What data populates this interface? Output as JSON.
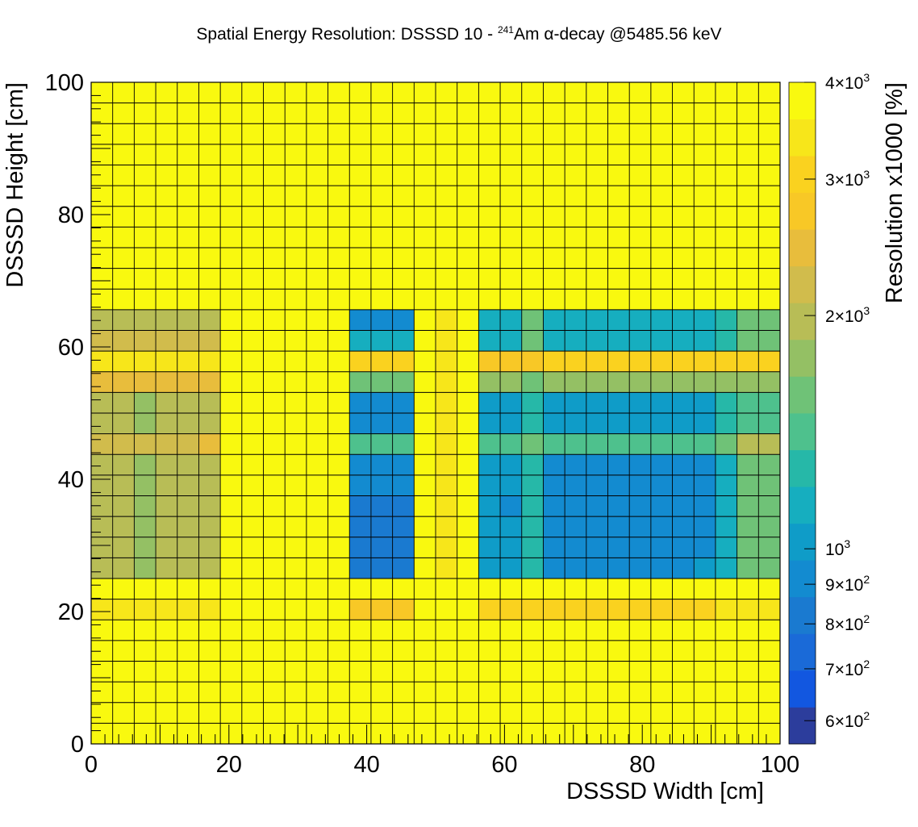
{
  "chart_data": {
    "type": "heatmap",
    "title_parts": {
      "pre": "Spatial Energy Resolution: DSSSD 10 - ",
      "isotope_mass": "241",
      "element": "Am ",
      "alpha": "α",
      "post": "-decay @5485.56 keV"
    },
    "xlabel": "DSSSD Width [cm]",
    "ylabel": "DSSSD Height [cm]",
    "zlabel": "Resolution x1000 [%]",
    "xlim": [
      0,
      100
    ],
    "ylim": [
      0,
      100
    ],
    "x_ticks": [
      "0",
      "20",
      "40",
      "60",
      "80",
      "100"
    ],
    "y_ticks": [
      "0",
      "20",
      "40",
      "60",
      "80",
      "100"
    ],
    "z_scale": "log",
    "z_range": [
      560,
      4000
    ],
    "z_ticks": [
      {
        "value": 4000,
        "mant": "4",
        "exp": "3"
      },
      {
        "value": 3000,
        "mant": "3",
        "exp": "3"
      },
      {
        "value": 2000,
        "mant": "2",
        "exp": "3"
      },
      {
        "value": 1000,
        "mant": "",
        "exp": "3"
      },
      {
        "value": 900,
        "mant": "9",
        "exp": "2"
      },
      {
        "value": 800,
        "mant": "8",
        "exp": "2"
      },
      {
        "value": 700,
        "mant": "7",
        "exp": "2"
      },
      {
        "value": 600,
        "mant": "6",
        "exp": "2"
      }
    ],
    "nx": 32,
    "ny": 32,
    "palette": [
      "#2c3d9c",
      "#1257e0",
      "#1a6ad8",
      "#1a7ad0",
      "#138bd0",
      "#0f9cc8",
      "#16aebf",
      "#26b8a8",
      "#4ec18d",
      "#6fc277",
      "#94c064",
      "#b8bd56",
      "#d1bc4c",
      "#e8bd3c",
      "#f8c826",
      "#fad21f",
      "#f7e61a",
      "#f9f90f"
    ],
    "row_values": {
      "4000": [
        4000,
        4000,
        4000,
        4000,
        4000,
        4000,
        4000,
        4000,
        4000,
        4000,
        4000,
        4000,
        4000,
        4000,
        4000,
        4000,
        4000,
        4000,
        4000,
        4000,
        4000,
        4000,
        4000,
        4000,
        4000,
        4000,
        4000,
        4000,
        4000,
        4000,
        4000,
        4000
      ],
      "25_22": [
        3300,
        3300,
        3300,
        3300,
        3300,
        3300,
        4000,
        4000,
        4000,
        4000,
        4000,
        4000,
        2700,
        2700,
        2700,
        4000,
        4000,
        4000,
        3000,
        3000,
        3000,
        3000,
        3000,
        3000,
        3000,
        3000,
        3000,
        3000,
        3000,
        3300,
        3300,
        3300
      ],
      "68_65": [
        2000,
        2000,
        1900,
        2000,
        2000,
        2000,
        4000,
        4000,
        4000,
        4000,
        4000,
        4000,
        950,
        950,
        950,
        4000,
        3300,
        4000,
        1150,
        1150,
        1500,
        1150,
        1150,
        1150,
        1150,
        1150,
        1150,
        1150,
        1150,
        1300,
        1500,
        1500
      ],
      "65_62": [
        2300,
        2300,
        2300,
        2300,
        2300,
        2300,
        4000,
        4000,
        4000,
        4000,
        4000,
        4000,
        1150,
        1150,
        1150,
        4000,
        3300,
        4000,
        1150,
        1150,
        1500,
        1150,
        1150,
        1150,
        1150,
        1150,
        1150,
        1150,
        1150,
        1300,
        1500,
        1500
      ],
      "62_59": [
        3300,
        3300,
        3300,
        3300,
        3300,
        3300,
        4000,
        4000,
        4000,
        4000,
        4000,
        4000,
        3000,
        3000,
        3000,
        4000,
        3300,
        4000,
        2800,
        2800,
        2800,
        2900,
        2900,
        2900,
        2900,
        2900,
        2900,
        2900,
        2900,
        2900,
        3100,
        3000
      ],
      "59_56": [
        2500,
        2500,
        2400,
        2500,
        2500,
        2500,
        4000,
        4000,
        4000,
        4000,
        4000,
        4000,
        1600,
        1600,
        1600,
        4000,
        3300,
        4000,
        1700,
        1700,
        1600,
        1700,
        1700,
        1700,
        1700,
        1700,
        1700,
        1700,
        1700,
        1700,
        1800,
        1700
      ],
      "56_53": [
        2000,
        2000,
        1800,
        1900,
        1900,
        1900,
        4000,
        4000,
        4000,
        4000,
        4000,
        4000,
        950,
        950,
        950,
        4000,
        3300,
        4000,
        1050,
        1050,
        1300,
        1050,
        1050,
        1050,
        1050,
        1050,
        1050,
        1050,
        1050,
        1300,
        1400,
        1400
      ],
      "53_50": [
        2000,
        2000,
        1800,
        1900,
        1900,
        1900,
        4000,
        4000,
        4000,
        4000,
        4000,
        4000,
        950,
        950,
        950,
        4000,
        3300,
        4000,
        1050,
        1050,
        1300,
        1050,
        1050,
        1050,
        1050,
        1050,
        1050,
        1050,
        1050,
        1300,
        1400,
        1400
      ],
      "50_47": [
        2300,
        2300,
        2300,
        2300,
        2300,
        2500,
        4000,
        4000,
        4000,
        4000,
        4000,
        4000,
        1400,
        1400,
        1400,
        4000,
        3300,
        4000,
        1400,
        1400,
        1600,
        1400,
        1400,
        1400,
        1400,
        1400,
        1400,
        1400,
        1400,
        1600,
        1900,
        1900
      ],
      "47_44": [
        2000,
        2000,
        1800,
        1900,
        1900,
        1900,
        4000,
        4000,
        4000,
        4000,
        4000,
        4000,
        900,
        900,
        900,
        4000,
        3300,
        4000,
        1000,
        1000,
        1300,
        900,
        900,
        900,
        900,
        900,
        900,
        900,
        950,
        1200,
        1500,
        1500
      ],
      "44_41": [
        2000,
        2000,
        1800,
        1900,
        1900,
        1900,
        4000,
        4000,
        4000,
        4000,
        4000,
        4000,
        900,
        900,
        900,
        4000,
        3300,
        4000,
        1000,
        1000,
        1300,
        900,
        900,
        900,
        900,
        900,
        900,
        900,
        950,
        1200,
        1500,
        1500
      ],
      "41_38": [
        2000,
        2000,
        1800,
        1900,
        1900,
        1900,
        4000,
        4000,
        4000,
        4000,
        4000,
        4000,
        850,
        850,
        850,
        4000,
        3300,
        4000,
        1000,
        900,
        1300,
        900,
        900,
        900,
        900,
        900,
        900,
        900,
        950,
        1200,
        1500,
        1500
      ],
      "38_35": [
        2000,
        2000,
        1800,
        1900,
        1900,
        1900,
        4000,
        4000,
        4000,
        4000,
        4000,
        4000,
        850,
        850,
        850,
        4000,
        3300,
        4000,
        1000,
        1000,
        1300,
        900,
        900,
        900,
        900,
        900,
        900,
        900,
        950,
        1200,
        1500,
        1500
      ],
      "35_31": [
        2000,
        2000,
        1800,
        1900,
        1900,
        1900,
        4000,
        4000,
        4000,
        4000,
        4000,
        4000,
        800,
        800,
        800,
        4000,
        3300,
        4000,
        1000,
        1000,
        1300,
        900,
        900,
        900,
        900,
        900,
        900,
        900,
        950,
        1200,
        1500,
        1500
      ],
      "31_28": [
        2000,
        2000,
        1800,
        1900,
        1900,
        1900,
        4000,
        4000,
        4000,
        4000,
        4000,
        4000,
        850,
        850,
        850,
        4000,
        3300,
        4000,
        1000,
        1000,
        1300,
        950,
        950,
        950,
        950,
        950,
        950,
        950,
        1000,
        1200,
        1500,
        1500
      ]
    },
    "rows_top_to_bottom": [
      "4000",
      "4000",
      "4000",
      "4000",
      "4000",
      "4000",
      "4000",
      "4000",
      "4000",
      "4000",
      "4000",
      "68_65",
      "65_62",
      "62_59",
      "59_56",
      "56_53",
      "53_50",
      "50_47",
      "47_44",
      "44_41",
      "41_38",
      "38_35",
      "35_31",
      "31_28",
      "4000",
      "25_22",
      "4000",
      "4000",
      "4000",
      "4000",
      "4000",
      "4000"
    ]
  }
}
